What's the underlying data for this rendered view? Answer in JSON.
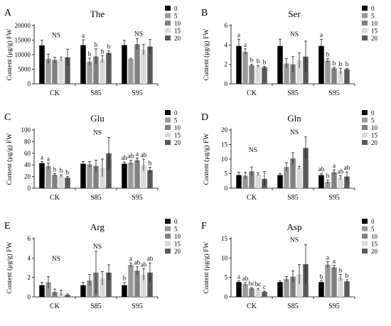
{
  "colors": [
    "#000000",
    "#999999",
    "#808080",
    "#d9d9d9",
    "#595959"
  ],
  "chart_data": [
    {
      "type": "bar",
      "panel_letter": "A",
      "title": "The",
      "ylabel": "Content (μg/g) FW",
      "ylim": [
        0,
        20000
      ],
      "yticks": [
        "0",
        "5000",
        "10000",
        "15000",
        "20000"
      ],
      "categories": [
        "CK",
        "S85",
        "S95"
      ],
      "legend": [
        "0",
        "5",
        "10",
        "15",
        "20"
      ],
      "series": [
        {
          "name": "0",
          "values": [
            13200,
            13300,
            13300
          ],
          "errors": [
            1800,
            1800,
            1600
          ],
          "letters": [
            "",
            "a",
            ""
          ]
        },
        {
          "name": "5",
          "values": [
            8600,
            7600,
            8500
          ],
          "errors": [
            1600,
            1200,
            300
          ],
          "letters": [
            "",
            "b",
            ""
          ]
        },
        {
          "name": "10",
          "values": [
            8200,
            9400,
            13600
          ],
          "errors": [
            900,
            2600,
            1900
          ],
          "letters": [
            "",
            "b",
            ""
          ]
        },
        {
          "name": "15",
          "values": [
            8500,
            8400,
            11700
          ],
          "errors": [
            600,
            1200,
            1800
          ],
          "letters": [
            "",
            "b",
            ""
          ]
        },
        {
          "name": "20",
          "values": [
            9100,
            10600,
            12800
          ],
          "errors": [
            2800,
            700,
            2400
          ],
          "letters": [
            "",
            "b",
            ""
          ]
        }
      ],
      "annotations": [
        {
          "category": 0,
          "text": "NS"
        },
        {
          "category": 2,
          "text": "NS"
        }
      ]
    },
    {
      "type": "bar",
      "panel_letter": "B",
      "title": "Ser",
      "ylabel": "Content (μg/g) FW",
      "ylim": [
        0,
        6
      ],
      "yticks": [
        "0",
        "2",
        "4",
        "6"
      ],
      "categories": [
        "CK",
        "S85",
        "S95"
      ],
      "legend": [
        "0",
        "5",
        "10",
        "15",
        "20"
      ],
      "series": [
        {
          "name": "0",
          "values": [
            3.9,
            3.9,
            3.9
          ],
          "errors": [
            0.7,
            0.7,
            0.7
          ],
          "letters": [
            "a",
            "",
            "a"
          ]
        },
        {
          "name": "5",
          "values": [
            3.3,
            2.1,
            2.4
          ],
          "errors": [
            0.3,
            0.5,
            0.2
          ],
          "letters": [
            "a",
            "",
            "b"
          ]
        },
        {
          "name": "10",
          "values": [
            1.9,
            2.0,
            1.6
          ],
          "errors": [
            0.1,
            0.8,
            0.1
          ],
          "letters": [
            "b",
            "",
            "b"
          ]
        },
        {
          "name": "15",
          "values": [
            1.8,
            2.4,
            1.3
          ],
          "errors": [
            0.1,
            0.8,
            0.3
          ],
          "letters": [
            "b",
            "",
            "b"
          ]
        },
        {
          "name": "20",
          "values": [
            1.7,
            2.8,
            1.5
          ],
          "errors": [
            0.1,
            1.6,
            0.1
          ],
          "letters": [
            "b",
            "",
            "b"
          ]
        }
      ],
      "annotations": [
        {
          "category": 1,
          "text": "NS"
        }
      ]
    },
    {
      "type": "bar",
      "panel_letter": "C",
      "title": "Glu",
      "ylabel": "Content (μg/g) FW",
      "ylim": [
        0,
        100
      ],
      "yticks": [
        "0",
        "20",
        "40",
        "60",
        "80",
        "100"
      ],
      "categories": [
        "CK",
        "S85",
        "S95"
      ],
      "legend": [
        "0",
        "5",
        "10",
        "15",
        "20"
      ],
      "series": [
        {
          "name": "0",
          "values": [
            43,
            42,
            42
          ],
          "errors": [
            3,
            4,
            3
          ],
          "letters": [
            "a",
            "",
            "ab"
          ]
        },
        {
          "name": "5",
          "values": [
            38,
            41,
            44
          ],
          "errors": [
            5,
            5,
            4
          ],
          "letters": [
            "a",
            "",
            "ab"
          ]
        },
        {
          "name": "10",
          "values": [
            23,
            38,
            48
          ],
          "errors": [
            2,
            10,
            4
          ],
          "letters": [
            "b",
            "",
            "a"
          ]
        },
        {
          "name": "15",
          "values": [
            21,
            35,
            40
          ],
          "errors": [
            2,
            15,
            10
          ],
          "letters": [
            "b",
            "",
            "ab"
          ]
        },
        {
          "name": "20",
          "values": [
            18,
            60,
            31
          ],
          "errors": [
            2,
            27,
            5
          ],
          "letters": [
            "b",
            "",
            "b"
          ]
        }
      ],
      "annotations": [
        {
          "category": 1,
          "text": "NS"
        }
      ]
    },
    {
      "type": "bar",
      "panel_letter": "D",
      "title": "Gln",
      "ylabel": "Content (μg/g) FW",
      "ylim": [
        0,
        20
      ],
      "yticks": [
        "0",
        "5",
        "10",
        "15",
        "20"
      ],
      "categories": [
        "CK",
        "S85",
        "S95"
      ],
      "legend": [
        "0",
        "5",
        "10",
        "15",
        "20"
      ],
      "series": [
        {
          "name": "0",
          "values": [
            4.5,
            4.5,
            4.5
          ],
          "errors": [
            1.0,
            0.6,
            0.6
          ],
          "letters": [
            "",
            "",
            "ab"
          ]
        },
        {
          "name": "5",
          "values": [
            4.3,
            7.3,
            2.2
          ],
          "errors": [
            1.2,
            1.5,
            0.6
          ],
          "letters": [
            "",
            "",
            "b"
          ]
        },
        {
          "name": "10",
          "values": [
            5.8,
            10.2,
            5.5
          ],
          "errors": [
            1.5,
            2.0,
            0.8
          ],
          "letters": [
            "",
            "",
            "a"
          ]
        },
        {
          "name": "15",
          "values": [
            4.8,
            7.0,
            3.6
          ],
          "errors": [
            0.5,
            0.5,
            0.7
          ],
          "letters": [
            "",
            "",
            "ab"
          ]
        },
        {
          "name": "20",
          "values": [
            3.2,
            13.8,
            4.0
          ],
          "errors": [
            2.5,
            3.8,
            1.6
          ],
          "letters": [
            "",
            "",
            "ab"
          ]
        }
      ],
      "annotations": [
        {
          "category": 0,
          "text": "NS"
        },
        {
          "category": 1,
          "text": "NS"
        }
      ]
    },
    {
      "type": "bar",
      "panel_letter": "E",
      "title": "Arg",
      "ylabel": "Content (μg/g) FW",
      "ylim": [
        0,
        6
      ],
      "yticks": [
        "0",
        "2",
        "4",
        "6"
      ],
      "categories": [
        "CK",
        "S85",
        "S95"
      ],
      "legend": [
        "0",
        "5",
        "10",
        "15",
        "20"
      ],
      "series": [
        {
          "name": "0",
          "values": [
            1.2,
            1.2,
            1.2
          ],
          "errors": [
            0.3,
            0.3,
            0.3
          ],
          "letters": [
            "",
            "",
            "b"
          ]
        },
        {
          "name": "5",
          "values": [
            1.5,
            1.7,
            3.3
          ],
          "errors": [
            0.6,
            0.6,
            0.2
          ],
          "letters": [
            "",
            "",
            "a"
          ]
        },
        {
          "name": "10",
          "values": [
            0.5,
            2.5,
            2.7
          ],
          "errors": [
            0.3,
            2.2,
            0.4
          ],
          "letters": [
            "",
            "",
            "ab"
          ]
        },
        {
          "name": "15",
          "values": [
            0.4,
            1.9,
            2.3
          ],
          "errors": [
            0.3,
            0.7,
            0.6
          ],
          "letters": [
            "",
            "",
            "ab"
          ]
        },
        {
          "name": "20",
          "values": [
            0.2,
            2.5,
            2.5
          ],
          "errors": [
            0.1,
            0.8,
            1.0
          ],
          "letters": [
            "",
            "",
            "ab"
          ]
        }
      ],
      "annotations": [
        {
          "category": 0,
          "text": "NS"
        },
        {
          "category": 1,
          "text": "NS"
        }
      ]
    },
    {
      "type": "bar",
      "panel_letter": "F",
      "title": "Asp",
      "ylabel": "Content (μg/g) FW",
      "ylim": [
        0,
        15
      ],
      "yticks": [
        "0",
        "5",
        "10",
        "15"
      ],
      "categories": [
        "CK",
        "S85",
        "S95"
      ],
      "legend": [
        "0",
        "5",
        "10",
        "15",
        "20"
      ],
      "series": [
        {
          "name": "0",
          "values": [
            3.8,
            3.8,
            3.8
          ],
          "errors": [
            0.3,
            0.3,
            0.3
          ],
          "letters": [
            "a",
            "",
            "b"
          ]
        },
        {
          "name": "5",
          "values": [
            3.3,
            4.6,
            8.3
          ],
          "errors": [
            0.4,
            0.6,
            0.8
          ],
          "letters": [
            "ab",
            "",
            "a"
          ]
        },
        {
          "name": "10",
          "values": [
            2.2,
            5.2,
            7.6
          ],
          "errors": [
            0.2,
            1.5,
            0.5
          ],
          "letters": [
            "bc",
            "",
            "a"
          ]
        },
        {
          "name": "15",
          "values": [
            1.9,
            5.8,
            5.0
          ],
          "errors": [
            0.3,
            2.5,
            0.8
          ],
          "letters": [
            "bc",
            "",
            "b"
          ]
        },
        {
          "name": "20",
          "values": [
            1.3,
            8.4,
            4.0
          ],
          "errors": [
            0.2,
            5.0,
            0.4
          ],
          "letters": [
            "c",
            "",
            "b"
          ]
        }
      ],
      "annotations": [
        {
          "category": 1,
          "text": "NS"
        }
      ]
    }
  ]
}
